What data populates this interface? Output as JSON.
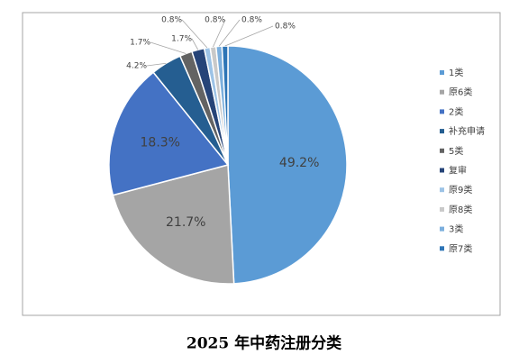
{
  "chart_data": {
    "type": "pie",
    "title": "2025 年中药注册分类",
    "categories": [
      "1类",
      "原6类",
      "2类",
      "补充申请",
      "5类",
      "复审",
      "原9类",
      "原8类",
      "3类",
      "原7类"
    ],
    "values": [
      49.2,
      21.7,
      18.3,
      4.2,
      1.7,
      1.7,
      0.8,
      0.8,
      0.8,
      0.8
    ],
    "value_labels": [
      "49.2%",
      "21.7%",
      "18.3%",
      "4.2%",
      "1.7%",
      "1.7%",
      "0.8%",
      "0.8%",
      "0.8%",
      "0.8%"
    ],
    "colors": [
      "#5b9bd5",
      "#a5a5a5",
      "#4472c4",
      "#255e91",
      "#636363",
      "#264478",
      "#9dc3e6",
      "#c9c9c9",
      "#7cafdd",
      "#2e75b6"
    ],
    "legend": "right"
  }
}
